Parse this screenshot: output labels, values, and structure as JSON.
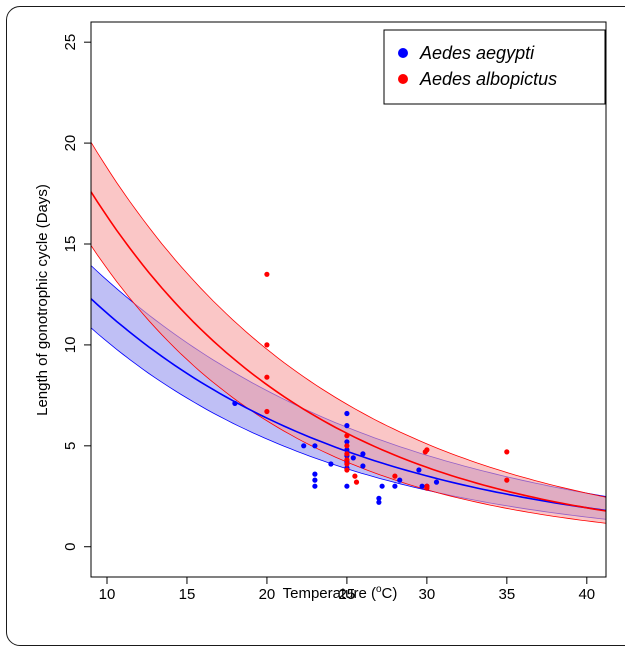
{
  "chart_data": {
    "type": "scatter",
    "xlabel": "Temperature (",
    "xlabel_sup": "o",
    "xlabel_suffix": "C)",
    "ylabel": "Length of gonotrophic cycle (Days)",
    "xlim": [
      9,
      41.2
    ],
    "ylim": [
      -1.5,
      26
    ],
    "xticks": [
      10,
      15,
      20,
      25,
      30,
      35,
      40
    ],
    "yticks": [
      0,
      5,
      10,
      15,
      20,
      25
    ],
    "grid": false,
    "legend_position": "top-right",
    "series": [
      {
        "name": "Aedes aegypti",
        "color": "#0000ff",
        "band_fill": "#aaaaf2",
        "band_opacity": 0.75,
        "fit": {
          "a": 21.03,
          "b": 0.0597
        },
        "band": {
          "a_low": 19.38,
          "b_low": 0.0645,
          "a_high": 22.55,
          "b_high": 0.0535
        },
        "points": [
          [
            18,
            7.1
          ],
          [
            22.3,
            5.0
          ],
          [
            23,
            5.0
          ],
          [
            23,
            3.6
          ],
          [
            23,
            3.3
          ],
          [
            23,
            3.0
          ],
          [
            24,
            4.1
          ],
          [
            25,
            6.6
          ],
          [
            25,
            6.0
          ],
          [
            25,
            5.2
          ],
          [
            25,
            4.8
          ],
          [
            25,
            4.5
          ],
          [
            25,
            4.2
          ],
          [
            25,
            3.9
          ],
          [
            25,
            3.0
          ],
          [
            25.4,
            4.4
          ],
          [
            26,
            4.6
          ],
          [
            26,
            4.0
          ],
          [
            27,
            2.4
          ],
          [
            27,
            2.2
          ],
          [
            27.2,
            3.0
          ],
          [
            28,
            3.0
          ],
          [
            28.3,
            3.3
          ],
          [
            29.5,
            3.8
          ],
          [
            29.7,
            3.0
          ],
          [
            30,
            3.0
          ],
          [
            30.6,
            3.2
          ]
        ]
      },
      {
        "name": "Aedes albopictus",
        "color": "#ff0000",
        "band_fill": "#f6a0a0",
        "band_opacity": 0.6,
        "fit": {
          "a": 33.41,
          "b": 0.0713
        },
        "band": {
          "a_low": 30.47,
          "b_low": 0.0793,
          "a_high": 36.04,
          "b_high": 0.0652
        },
        "points": [
          [
            20,
            13.5
          ],
          [
            20,
            10.0
          ],
          [
            20,
            8.4
          ],
          [
            20,
            6.7
          ],
          [
            25,
            5.5
          ],
          [
            25,
            5.0
          ],
          [
            25,
            4.6
          ],
          [
            25,
            4.3
          ],
          [
            25,
            4.1
          ],
          [
            25,
            3.8
          ],
          [
            25.5,
            3.5
          ],
          [
            25.6,
            3.2
          ],
          [
            28,
            3.5
          ],
          [
            29.9,
            4.7
          ],
          [
            30,
            4.8
          ],
          [
            30,
            3.0
          ],
          [
            30,
            2.9
          ],
          [
            35,
            4.7
          ],
          [
            35,
            3.3
          ]
        ]
      }
    ]
  }
}
